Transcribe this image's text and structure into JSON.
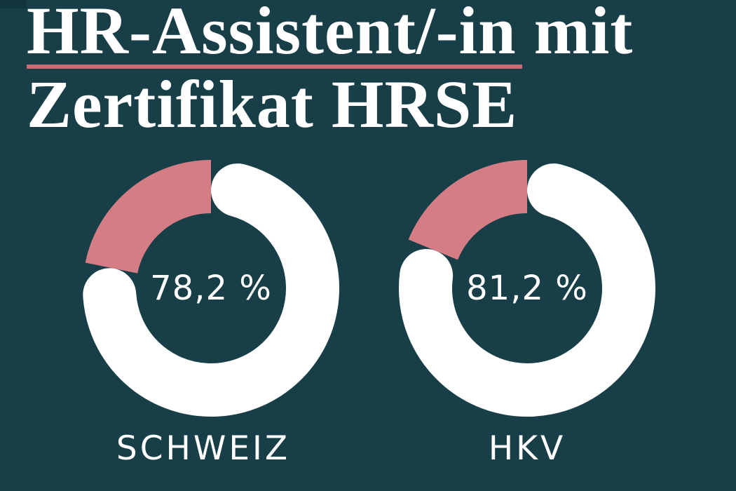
{
  "title": {
    "line1_underlined": "HR-Assistent/-in",
    "line1_suffix": "mit",
    "line2": "Zertifikat HRSE"
  },
  "colors": {
    "background": "#183f48",
    "corner_patch": "#12343d",
    "ring_pink": "#d47d84",
    "ring_white": "#ffffff",
    "underline_pink": "#c96b74",
    "text_white": "#ffffff"
  },
  "chart_data": [
    {
      "type": "donut",
      "label": "SCHWEIZ",
      "value_label": "78,2 %",
      "value_percent": 78.2,
      "remainder_percent": 21.8,
      "value_color": "#ffffff",
      "remainder_color": "#d47d84",
      "start_angle_deg": 0,
      "direction": "clockwise",
      "rounded_caps": true
    },
    {
      "type": "donut",
      "label": "HKV",
      "value_label": "81,2 %",
      "value_percent": 81.2,
      "remainder_percent": 18.8,
      "value_color": "#ffffff",
      "remainder_color": "#d47d84",
      "start_angle_deg": 0,
      "direction": "clockwise",
      "rounded_caps": true
    }
  ]
}
